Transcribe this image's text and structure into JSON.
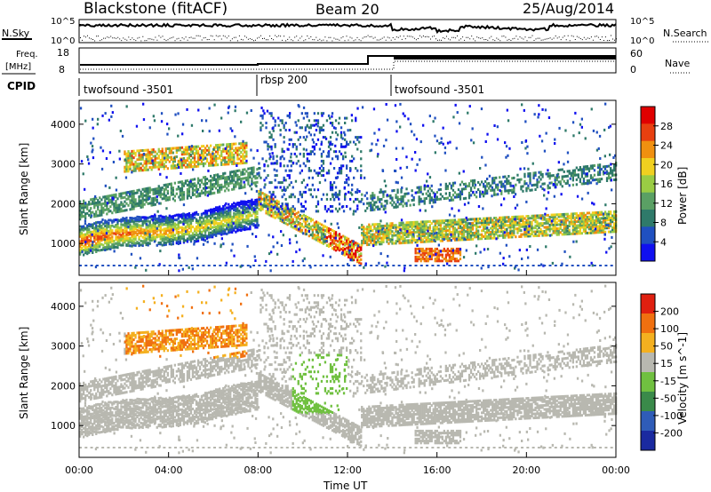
{
  "header": {
    "station": "Blackstone (fitACF)",
    "beam": "Beam 20",
    "date": "25/Aug/2014"
  },
  "noise_panel": {
    "left_label": "N.Sky",
    "right_label": "N.Search",
    "left_ticks": [
      "10^5",
      "10^0"
    ],
    "right_ticks": [
      "10^5",
      "10^0"
    ]
  },
  "freq_panel": {
    "left_label_line1": "Freq.",
    "left_label_line2": "[MHz]",
    "left_ticks": [
      "18",
      "8"
    ],
    "right_label": "Nave",
    "right_ticks": [
      "60",
      "0"
    ]
  },
  "cpid_panel": {
    "label": "CPID",
    "segments": [
      {
        "name": "twofsound -3501",
        "start_hour": 0,
        "end_hour": 8
      },
      {
        "name": "rbsp 200",
        "start_hour": 8,
        "end_hour": 14
      },
      {
        "name": "twofsound -3501",
        "start_hour": 14,
        "end_hour": 24
      }
    ]
  },
  "chart_data": [
    {
      "type": "heatmap",
      "title": "",
      "xlabel": "",
      "ylabel": "Slant Range [km]",
      "xlim": [
        0,
        24
      ],
      "ylim": [
        200,
        4600
      ],
      "x_tick_labels": [
        "00:00",
        "04:00",
        "08:00",
        "12:00",
        "16:00",
        "20:00",
        "00:00"
      ],
      "y_ticks": [
        1000,
        2000,
        3000,
        4000
      ],
      "colorbar": {
        "label": "Power [dB]",
        "ticks": [
          "4",
          "8",
          "12",
          "16",
          "20",
          "24",
          "28"
        ],
        "range": [
          0,
          32
        ],
        "colors": [
          "#1010f0",
          "#2050c0",
          "#2f7a6a",
          "#5aa064",
          "#9acc44",
          "#f0d020",
          "#f09010",
          "#e84010",
          "#e00000"
        ]
      },
      "features": [
        {
          "name": "near-range band",
          "hours": [
            0,
            8
          ],
          "range_km": [
            900,
            1700
          ],
          "peak_power_db": 28
        },
        {
          "name": "far-range patch",
          "hours": [
            2,
            7
          ],
          "range_km": [
            2800,
            3300
          ],
          "peak_power_db": 24
        },
        {
          "name": "descending trace",
          "hours": [
            8,
            12.5
          ],
          "range_km": [
            800,
            2200
          ],
          "peak_power_db": 28
        },
        {
          "name": "evening band",
          "hours": [
            14,
            24
          ],
          "range_km": [
            1200,
            1700
          ],
          "peak_power_db": 24
        }
      ]
    },
    {
      "type": "heatmap",
      "title": "",
      "xlabel": "Time UT",
      "ylabel": "Slant Range [km]",
      "xlim": [
        0,
        24
      ],
      "ylim": [
        200,
        4600
      ],
      "x_tick_labels": [
        "00:00",
        "04:00",
        "08:00",
        "12:00",
        "16:00",
        "20:00",
        "00:00"
      ],
      "y_ticks": [
        1000,
        2000,
        3000,
        4000
      ],
      "colorbar": {
        "label": "Velocity [m s^-1]",
        "ticks": [
          "200",
          "100",
          "50",
          "15",
          "-15",
          "-50",
          "-100",
          "-200"
        ],
        "range": [
          -250,
          250
        ],
        "colors": [
          "#1a2aa0",
          "#2f5cb8",
          "#3a8a4a",
          "#70c040",
          "#b8b8b0",
          "#f4b020",
          "#f07010",
          "#e02010"
        ]
      }
    }
  ]
}
